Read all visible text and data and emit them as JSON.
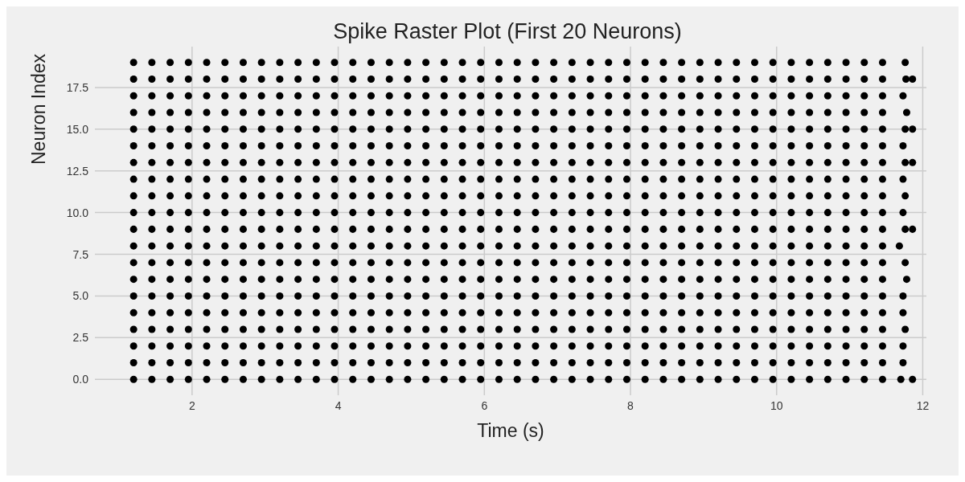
{
  "chart_data": {
    "type": "scatter",
    "title": "Spike Raster Plot (First 20 Neurons)",
    "xlabel": "Time (s)",
    "ylabel": "Neuron Index",
    "xlim": [
      0.67,
      12.05
    ],
    "xticks": [
      2,
      4,
      6,
      8,
      10,
      12
    ],
    "ylim": [
      -0.95,
      19.95
    ],
    "yticks": [
      {
        "value": 0,
        "label": "0.0"
      },
      {
        "value": 2.5,
        "label": "2.5"
      },
      {
        "value": 5,
        "label": "5.0"
      },
      {
        "value": 7.5,
        "label": "7.5"
      },
      {
        "value": 10,
        "label": "10.0"
      },
      {
        "value": 12.5,
        "label": "12.5"
      },
      {
        "value": 15,
        "label": "15.0"
      },
      {
        "value": 17.5,
        "label": "17.5"
      }
    ],
    "grid": true,
    "marker": "circle",
    "series": [
      {
        "color": "#000000",
        "x": [
          1.2,
          1.45,
          1.7,
          1.95,
          2.2,
          2.45,
          2.7,
          2.95,
          3.2,
          3.45,
          3.7,
          3.95,
          4.2,
          4.45,
          4.7,
          4.95,
          5.2,
          5.45,
          5.7,
          5.95,
          6.2,
          6.45,
          6.7,
          6.95,
          7.2,
          7.45,
          7.7,
          7.95,
          8.2,
          8.45,
          8.7,
          8.95,
          9.2,
          9.45,
          9.7,
          9.95,
          10.2,
          10.45,
          10.7,
          10.95,
          11.2,
          11.45,
          11.7,
          11.86
        ],
        "values": [
          0,
          0,
          0,
          0,
          0,
          0,
          0,
          0,
          0,
          0,
          0,
          0,
          0,
          0,
          0,
          0,
          0,
          0,
          0,
          0,
          0,
          0,
          0,
          0,
          0,
          0,
          0,
          0,
          0,
          0,
          0,
          0,
          0,
          0,
          0,
          0,
          0,
          0,
          0,
          0,
          0,
          0,
          0,
          0
        ]
      },
      {
        "color": "#000000",
        "x": [
          1.2,
          1.45,
          1.7,
          1.95,
          2.2,
          2.45,
          2.7,
          2.95,
          3.2,
          3.45,
          3.7,
          3.95,
          4.2,
          4.45,
          4.7,
          4.95,
          5.2,
          5.45,
          5.7,
          5.95,
          6.2,
          6.45,
          6.7,
          6.95,
          7.2,
          7.45,
          7.7,
          7.95,
          8.2,
          8.45,
          8.7,
          8.95,
          9.2,
          9.45,
          9.7,
          9.95,
          10.2,
          10.45,
          10.7,
          10.95,
          11.2,
          11.45,
          11.73
        ],
        "values": [
          1,
          1,
          1,
          1,
          1,
          1,
          1,
          1,
          1,
          1,
          1,
          1,
          1,
          1,
          1,
          1,
          1,
          1,
          1,
          1,
          1,
          1,
          1,
          1,
          1,
          1,
          1,
          1,
          1,
          1,
          1,
          1,
          1,
          1,
          1,
          1,
          1,
          1,
          1,
          1,
          1,
          1,
          1
        ]
      },
      {
        "color": "#000000",
        "x": [
          1.2,
          1.45,
          1.7,
          1.95,
          2.2,
          2.45,
          2.7,
          2.95,
          3.2,
          3.45,
          3.7,
          3.95,
          4.2,
          4.45,
          4.7,
          4.95,
          5.2,
          5.45,
          5.7,
          5.95,
          6.2,
          6.45,
          6.7,
          6.95,
          7.2,
          7.45,
          7.7,
          7.95,
          8.2,
          8.45,
          8.7,
          8.95,
          9.2,
          9.45,
          9.7,
          9.95,
          10.2,
          10.45,
          10.7,
          10.95,
          11.2,
          11.45,
          11.73
        ],
        "values": [
          2,
          2,
          2,
          2,
          2,
          2,
          2,
          2,
          2,
          2,
          2,
          2,
          2,
          2,
          2,
          2,
          2,
          2,
          2,
          2,
          2,
          2,
          2,
          2,
          2,
          2,
          2,
          2,
          2,
          2,
          2,
          2,
          2,
          2,
          2,
          2,
          2,
          2,
          2,
          2,
          2,
          2,
          2
        ]
      },
      {
        "color": "#000000",
        "x": [
          1.2,
          1.45,
          1.7,
          1.95,
          2.2,
          2.45,
          2.7,
          2.95,
          3.2,
          3.45,
          3.7,
          3.95,
          4.2,
          4.45,
          4.7,
          4.95,
          5.2,
          5.45,
          5.7,
          5.95,
          6.2,
          6.45,
          6.7,
          6.95,
          7.2,
          7.45,
          7.7,
          7.95,
          8.2,
          8.45,
          8.7,
          8.95,
          9.2,
          9.45,
          9.7,
          9.95,
          10.2,
          10.45,
          10.7,
          10.95,
          11.2,
          11.45,
          11.76
        ],
        "values": [
          3,
          3,
          3,
          3,
          3,
          3,
          3,
          3,
          3,
          3,
          3,
          3,
          3,
          3,
          3,
          3,
          3,
          3,
          3,
          3,
          3,
          3,
          3,
          3,
          3,
          3,
          3,
          3,
          3,
          3,
          3,
          3,
          3,
          3,
          3,
          3,
          3,
          3,
          3,
          3,
          3,
          3,
          3
        ]
      },
      {
        "color": "#000000",
        "x": [
          1.2,
          1.45,
          1.7,
          1.95,
          2.2,
          2.45,
          2.7,
          2.95,
          3.2,
          3.45,
          3.7,
          3.95,
          4.2,
          4.45,
          4.7,
          4.95,
          5.2,
          5.45,
          5.7,
          5.95,
          6.2,
          6.45,
          6.7,
          6.95,
          7.2,
          7.45,
          7.7,
          7.95,
          8.2,
          8.45,
          8.7,
          8.95,
          9.2,
          9.45,
          9.7,
          9.95,
          10.2,
          10.45,
          10.7,
          10.95,
          11.2,
          11.45,
          11.73
        ],
        "values": [
          4,
          4,
          4,
          4,
          4,
          4,
          4,
          4,
          4,
          4,
          4,
          4,
          4,
          4,
          4,
          4,
          4,
          4,
          4,
          4,
          4,
          4,
          4,
          4,
          4,
          4,
          4,
          4,
          4,
          4,
          4,
          4,
          4,
          4,
          4,
          4,
          4,
          4,
          4,
          4,
          4,
          4,
          4
        ]
      },
      {
        "color": "#000000",
        "x": [
          1.2,
          1.45,
          1.7,
          1.95,
          2.2,
          2.45,
          2.7,
          2.95,
          3.2,
          3.45,
          3.7,
          3.95,
          4.2,
          4.45,
          4.7,
          4.95,
          5.2,
          5.45,
          5.7,
          5.95,
          6.2,
          6.45,
          6.7,
          6.95,
          7.2,
          7.45,
          7.7,
          7.95,
          8.2,
          8.45,
          8.7,
          8.95,
          9.2,
          9.45,
          9.7,
          9.95,
          10.2,
          10.45,
          10.7,
          10.95,
          11.2,
          11.45,
          11.73
        ],
        "values": [
          5,
          5,
          5,
          5,
          5,
          5,
          5,
          5,
          5,
          5,
          5,
          5,
          5,
          5,
          5,
          5,
          5,
          5,
          5,
          5,
          5,
          5,
          5,
          5,
          5,
          5,
          5,
          5,
          5,
          5,
          5,
          5,
          5,
          5,
          5,
          5,
          5,
          5,
          5,
          5,
          5,
          5,
          5
        ]
      },
      {
        "color": "#000000",
        "x": [
          1.2,
          1.45,
          1.7,
          1.95,
          2.2,
          2.45,
          2.7,
          2.95,
          3.2,
          3.45,
          3.7,
          3.95,
          4.2,
          4.45,
          4.7,
          4.95,
          5.2,
          5.45,
          5.7,
          5.95,
          6.2,
          6.45,
          6.7,
          6.95,
          7.2,
          7.45,
          7.7,
          7.95,
          8.2,
          8.45,
          8.7,
          8.95,
          9.2,
          9.45,
          9.7,
          9.95,
          10.2,
          10.45,
          10.7,
          10.95,
          11.2,
          11.45,
          11.78
        ],
        "values": [
          6,
          6,
          6,
          6,
          6,
          6,
          6,
          6,
          6,
          6,
          6,
          6,
          6,
          6,
          6,
          6,
          6,
          6,
          6,
          6,
          6,
          6,
          6,
          6,
          6,
          6,
          6,
          6,
          6,
          6,
          6,
          6,
          6,
          6,
          6,
          6,
          6,
          6,
          6,
          6,
          6,
          6,
          6
        ]
      },
      {
        "color": "#000000",
        "x": [
          1.2,
          1.45,
          1.7,
          1.95,
          2.2,
          2.45,
          2.7,
          2.95,
          3.2,
          3.45,
          3.7,
          3.95,
          4.2,
          4.45,
          4.7,
          4.95,
          5.2,
          5.45,
          5.7,
          5.95,
          6.2,
          6.45,
          6.7,
          6.95,
          7.2,
          7.45,
          7.7,
          7.95,
          8.2,
          8.45,
          8.7,
          8.95,
          9.2,
          9.45,
          9.7,
          9.95,
          10.2,
          10.45,
          10.7,
          10.95,
          11.2,
          11.45,
          11.76
        ],
        "values": [
          7,
          7,
          7,
          7,
          7,
          7,
          7,
          7,
          7,
          7,
          7,
          7,
          7,
          7,
          7,
          7,
          7,
          7,
          7,
          7,
          7,
          7,
          7,
          7,
          7,
          7,
          7,
          7,
          7,
          7,
          7,
          7,
          7,
          7,
          7,
          7,
          7,
          7,
          7,
          7,
          7,
          7,
          7
        ]
      },
      {
        "color": "#000000",
        "x": [
          1.2,
          1.45,
          1.7,
          1.95,
          2.2,
          2.45,
          2.7,
          2.95,
          3.2,
          3.45,
          3.7,
          3.95,
          4.2,
          4.45,
          4.7,
          4.95,
          5.2,
          5.45,
          5.7,
          5.95,
          6.2,
          6.45,
          6.7,
          6.95,
          7.2,
          7.45,
          7.7,
          7.95,
          8.2,
          8.45,
          8.7,
          8.95,
          9.2,
          9.45,
          9.7,
          9.95,
          10.2,
          10.45,
          10.7,
          10.95,
          11.2,
          11.45,
          11.68
        ],
        "values": [
          8,
          8,
          8,
          8,
          8,
          8,
          8,
          8,
          8,
          8,
          8,
          8,
          8,
          8,
          8,
          8,
          8,
          8,
          8,
          8,
          8,
          8,
          8,
          8,
          8,
          8,
          8,
          8,
          8,
          8,
          8,
          8,
          8,
          8,
          8,
          8,
          8,
          8,
          8,
          8,
          8,
          8,
          8
        ]
      },
      {
        "color": "#000000",
        "x": [
          1.2,
          1.45,
          1.7,
          1.95,
          2.2,
          2.45,
          2.7,
          2.95,
          3.2,
          3.45,
          3.7,
          3.95,
          4.2,
          4.45,
          4.7,
          4.95,
          5.2,
          5.45,
          5.7,
          5.95,
          6.2,
          6.45,
          6.7,
          6.95,
          7.2,
          7.45,
          7.7,
          7.95,
          8.2,
          8.45,
          8.7,
          8.95,
          9.2,
          9.45,
          9.7,
          9.95,
          10.2,
          10.45,
          10.7,
          10.95,
          11.2,
          11.45,
          11.76,
          11.86
        ],
        "values": [
          9,
          9,
          9,
          9,
          9,
          9,
          9,
          9,
          9,
          9,
          9,
          9,
          9,
          9,
          9,
          9,
          9,
          9,
          9,
          9,
          9,
          9,
          9,
          9,
          9,
          9,
          9,
          9,
          9,
          9,
          9,
          9,
          9,
          9,
          9,
          9,
          9,
          9,
          9,
          9,
          9,
          9,
          9,
          9
        ]
      },
      {
        "color": "#000000",
        "x": [
          1.2,
          1.45,
          1.7,
          1.95,
          2.2,
          2.45,
          2.7,
          2.95,
          3.2,
          3.45,
          3.7,
          3.95,
          4.2,
          4.45,
          4.7,
          4.95,
          5.2,
          5.45,
          5.7,
          5.95,
          6.2,
          6.45,
          6.7,
          6.95,
          7.2,
          7.45,
          7.7,
          7.95,
          8.2,
          8.45,
          8.7,
          8.95,
          9.2,
          9.45,
          9.7,
          9.95,
          10.2,
          10.45,
          10.7,
          10.95,
          11.2,
          11.45,
          11.73
        ],
        "values": [
          10,
          10,
          10,
          10,
          10,
          10,
          10,
          10,
          10,
          10,
          10,
          10,
          10,
          10,
          10,
          10,
          10,
          10,
          10,
          10,
          10,
          10,
          10,
          10,
          10,
          10,
          10,
          10,
          10,
          10,
          10,
          10,
          10,
          10,
          10,
          10,
          10,
          10,
          10,
          10,
          10,
          10,
          10
        ]
      },
      {
        "color": "#000000",
        "x": [
          1.2,
          1.45,
          1.7,
          1.95,
          2.2,
          2.45,
          2.7,
          2.95,
          3.2,
          3.45,
          3.7,
          3.95,
          4.2,
          4.45,
          4.7,
          4.95,
          5.2,
          5.45,
          5.7,
          5.95,
          6.2,
          6.45,
          6.7,
          6.95,
          7.2,
          7.45,
          7.7,
          7.95,
          8.2,
          8.45,
          8.7,
          8.95,
          9.2,
          9.45,
          9.7,
          9.95,
          10.2,
          10.45,
          10.7,
          10.95,
          11.2,
          11.45,
          11.76
        ],
        "values": [
          11,
          11,
          11,
          11,
          11,
          11,
          11,
          11,
          11,
          11,
          11,
          11,
          11,
          11,
          11,
          11,
          11,
          11,
          11,
          11,
          11,
          11,
          11,
          11,
          11,
          11,
          11,
          11,
          11,
          11,
          11,
          11,
          11,
          11,
          11,
          11,
          11,
          11,
          11,
          11,
          11,
          11,
          11
        ]
      },
      {
        "color": "#000000",
        "x": [
          1.2,
          1.45,
          1.7,
          1.95,
          2.2,
          2.45,
          2.7,
          2.95,
          3.2,
          3.45,
          3.7,
          3.95,
          4.2,
          4.45,
          4.7,
          4.95,
          5.2,
          5.45,
          5.7,
          5.95,
          6.2,
          6.45,
          6.7,
          6.95,
          7.2,
          7.45,
          7.7,
          7.95,
          8.2,
          8.45,
          8.7,
          8.95,
          9.2,
          9.45,
          9.7,
          9.95,
          10.2,
          10.45,
          10.7,
          10.95,
          11.2,
          11.45,
          11.73
        ],
        "values": [
          12,
          12,
          12,
          12,
          12,
          12,
          12,
          12,
          12,
          12,
          12,
          12,
          12,
          12,
          12,
          12,
          12,
          12,
          12,
          12,
          12,
          12,
          12,
          12,
          12,
          12,
          12,
          12,
          12,
          12,
          12,
          12,
          12,
          12,
          12,
          12,
          12,
          12,
          12,
          12,
          12,
          12,
          12
        ]
      },
      {
        "color": "#000000",
        "x": [
          1.2,
          1.45,
          1.7,
          1.95,
          2.2,
          2.45,
          2.7,
          2.95,
          3.2,
          3.45,
          3.7,
          3.95,
          4.2,
          4.45,
          4.7,
          4.95,
          5.2,
          5.45,
          5.7,
          5.95,
          6.2,
          6.45,
          6.7,
          6.95,
          7.2,
          7.45,
          7.7,
          7.95,
          8.2,
          8.45,
          8.7,
          8.95,
          9.2,
          9.45,
          9.7,
          9.95,
          10.2,
          10.45,
          10.7,
          10.95,
          11.2,
          11.45,
          11.76,
          11.86
        ],
        "values": [
          13,
          13,
          13,
          13,
          13,
          13,
          13,
          13,
          13,
          13,
          13,
          13,
          13,
          13,
          13,
          13,
          13,
          13,
          13,
          13,
          13,
          13,
          13,
          13,
          13,
          13,
          13,
          13,
          13,
          13,
          13,
          13,
          13,
          13,
          13,
          13,
          13,
          13,
          13,
          13,
          13,
          13,
          13,
          13
        ]
      },
      {
        "color": "#000000",
        "x": [
          1.2,
          1.45,
          1.7,
          1.95,
          2.2,
          2.45,
          2.7,
          2.95,
          3.2,
          3.45,
          3.7,
          3.95,
          4.2,
          4.45,
          4.7,
          4.95,
          5.2,
          5.45,
          5.7,
          5.95,
          6.2,
          6.45,
          6.7,
          6.95,
          7.2,
          7.45,
          7.7,
          7.95,
          8.2,
          8.45,
          8.7,
          8.95,
          9.2,
          9.45,
          9.7,
          9.95,
          10.2,
          10.45,
          10.7,
          10.95,
          11.2,
          11.45,
          11.73
        ],
        "values": [
          14,
          14,
          14,
          14,
          14,
          14,
          14,
          14,
          14,
          14,
          14,
          14,
          14,
          14,
          14,
          14,
          14,
          14,
          14,
          14,
          14,
          14,
          14,
          14,
          14,
          14,
          14,
          14,
          14,
          14,
          14,
          14,
          14,
          14,
          14,
          14,
          14,
          14,
          14,
          14,
          14,
          14,
          14
        ]
      },
      {
        "color": "#000000",
        "x": [
          1.2,
          1.45,
          1.7,
          1.95,
          2.2,
          2.45,
          2.7,
          2.95,
          3.2,
          3.45,
          3.7,
          3.95,
          4.2,
          4.45,
          4.7,
          4.95,
          5.2,
          5.45,
          5.7,
          5.95,
          6.2,
          6.45,
          6.7,
          6.95,
          7.2,
          7.45,
          7.7,
          7.95,
          8.2,
          8.45,
          8.7,
          8.95,
          9.2,
          9.45,
          9.7,
          9.95,
          10.2,
          10.45,
          10.7,
          10.95,
          11.2,
          11.45,
          11.76,
          11.86
        ],
        "values": [
          15,
          15,
          15,
          15,
          15,
          15,
          15,
          15,
          15,
          15,
          15,
          15,
          15,
          15,
          15,
          15,
          15,
          15,
          15,
          15,
          15,
          15,
          15,
          15,
          15,
          15,
          15,
          15,
          15,
          15,
          15,
          15,
          15,
          15,
          15,
          15,
          15,
          15,
          15,
          15,
          15,
          15,
          15,
          15
        ]
      },
      {
        "color": "#000000",
        "x": [
          1.2,
          1.45,
          1.7,
          1.95,
          2.2,
          2.45,
          2.7,
          2.95,
          3.2,
          3.45,
          3.7,
          3.95,
          4.2,
          4.45,
          4.7,
          4.95,
          5.2,
          5.45,
          5.7,
          5.95,
          6.2,
          6.45,
          6.7,
          6.95,
          7.2,
          7.45,
          7.7,
          7.95,
          8.2,
          8.45,
          8.7,
          8.95,
          9.2,
          9.45,
          9.7,
          9.95,
          10.2,
          10.45,
          10.7,
          10.95,
          11.2,
          11.45,
          11.78
        ],
        "values": [
          16,
          16,
          16,
          16,
          16,
          16,
          16,
          16,
          16,
          16,
          16,
          16,
          16,
          16,
          16,
          16,
          16,
          16,
          16,
          16,
          16,
          16,
          16,
          16,
          16,
          16,
          16,
          16,
          16,
          16,
          16,
          16,
          16,
          16,
          16,
          16,
          16,
          16,
          16,
          16,
          16,
          16,
          16
        ]
      },
      {
        "color": "#000000",
        "x": [
          1.2,
          1.45,
          1.7,
          1.95,
          2.2,
          2.45,
          2.7,
          2.95,
          3.2,
          3.45,
          3.7,
          3.95,
          4.2,
          4.45,
          4.7,
          4.95,
          5.2,
          5.45,
          5.7,
          5.95,
          6.2,
          6.45,
          6.7,
          6.95,
          7.2,
          7.45,
          7.7,
          7.95,
          8.2,
          8.45,
          8.7,
          8.95,
          9.2,
          9.45,
          9.7,
          9.95,
          10.2,
          10.45,
          10.7,
          10.95,
          11.2,
          11.45,
          11.73
        ],
        "values": [
          17,
          17,
          17,
          17,
          17,
          17,
          17,
          17,
          17,
          17,
          17,
          17,
          17,
          17,
          17,
          17,
          17,
          17,
          17,
          17,
          17,
          17,
          17,
          17,
          17,
          17,
          17,
          17,
          17,
          17,
          17,
          17,
          17,
          17,
          17,
          17,
          17,
          17,
          17,
          17,
          17,
          17,
          17
        ]
      },
      {
        "color": "#000000",
        "x": [
          1.2,
          1.45,
          1.7,
          1.95,
          2.2,
          2.45,
          2.7,
          2.95,
          3.2,
          3.45,
          3.7,
          3.95,
          4.2,
          4.45,
          4.7,
          4.95,
          5.2,
          5.45,
          5.7,
          5.95,
          6.2,
          6.45,
          6.7,
          6.95,
          7.2,
          7.45,
          7.7,
          7.95,
          8.2,
          8.45,
          8.7,
          8.95,
          9.2,
          9.45,
          9.7,
          9.95,
          10.2,
          10.45,
          10.7,
          10.95,
          11.2,
          11.45,
          11.77,
          11.86
        ],
        "values": [
          18,
          18,
          18,
          18,
          18,
          18,
          18,
          18,
          18,
          18,
          18,
          18,
          18,
          18,
          18,
          18,
          18,
          18,
          18,
          18,
          18,
          18,
          18,
          18,
          18,
          18,
          18,
          18,
          18,
          18,
          18,
          18,
          18,
          18,
          18,
          18,
          18,
          18,
          18,
          18,
          18,
          18,
          18,
          18
        ]
      },
      {
        "color": "#000000",
        "x": [
          1.2,
          1.45,
          1.7,
          1.95,
          2.2,
          2.45,
          2.7,
          2.95,
          3.2,
          3.45,
          3.7,
          3.95,
          4.2,
          4.45,
          4.7,
          4.95,
          5.2,
          5.45,
          5.7,
          5.95,
          6.2,
          6.45,
          6.7,
          6.95,
          7.2,
          7.45,
          7.7,
          7.95,
          8.2,
          8.45,
          8.7,
          8.95,
          9.2,
          9.45,
          9.7,
          9.95,
          10.2,
          10.45,
          10.7,
          10.95,
          11.2,
          11.45,
          11.76
        ],
        "values": [
          19,
          19,
          19,
          19,
          19,
          19,
          19,
          19,
          19,
          19,
          19,
          19,
          19,
          19,
          19,
          19,
          19,
          19,
          19,
          19,
          19,
          19,
          19,
          19,
          19,
          19,
          19,
          19,
          19,
          19,
          19,
          19,
          19,
          19,
          19,
          19,
          19,
          19,
          19,
          19,
          19,
          19,
          19
        ]
      }
    ]
  }
}
